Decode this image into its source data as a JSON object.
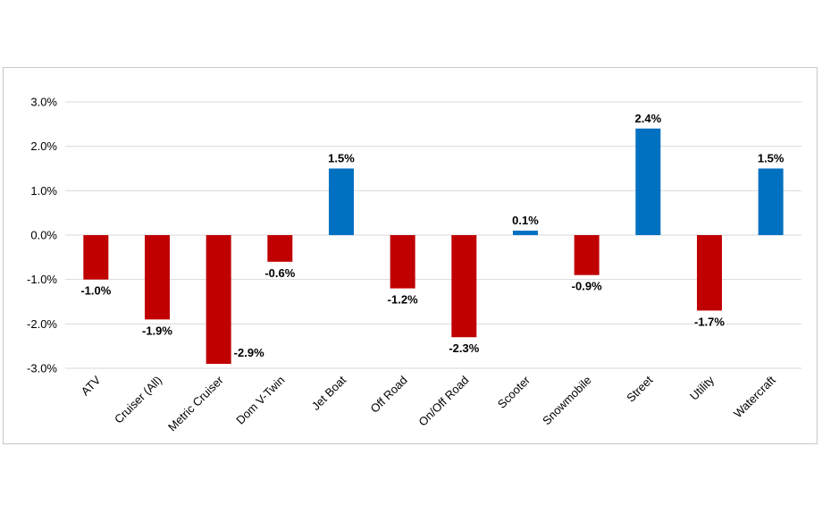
{
  "chart_data": {
    "type": "bar",
    "title": "",
    "xlabel": "",
    "ylabel": "",
    "categories": [
      "ATV",
      "Cruiser (All)",
      "Metric Cruiser",
      "Dom V-Twin",
      "Jet Boat",
      "Off Road",
      "On/Off Road",
      "Scooter",
      "Snowmobile",
      "Street",
      "Utility",
      "Watercraft"
    ],
    "values": [
      -1.0,
      -1.9,
      -2.9,
      -0.6,
      1.5,
      -1.2,
      -2.3,
      0.1,
      -0.9,
      2.4,
      -1.7,
      1.5
    ],
    "data_labels": [
      "-1.0%",
      "-1.9%",
      "-2.9%",
      "-0.6%",
      "1.5%",
      "-1.2%",
      "-2.3%",
      "0.1%",
      "-0.9%",
      "2.4%",
      "-1.7%",
      "1.5%"
    ],
    "ylim": [
      -3.0,
      3.0
    ],
    "yticks": [
      3.0,
      2.0,
      1.0,
      0.0,
      -1.0,
      -2.0,
      -3.0
    ],
    "ytick_labels": [
      "3.0%",
      "2.0%",
      "1.0%",
      "0.0%",
      "-1.0%",
      "-2.0%",
      "-3.0%"
    ],
    "grid": true,
    "legend": "none",
    "colors": {
      "positive": "#0070c0",
      "negative": "#c00000",
      "grid": "#d9d9d9"
    }
  }
}
